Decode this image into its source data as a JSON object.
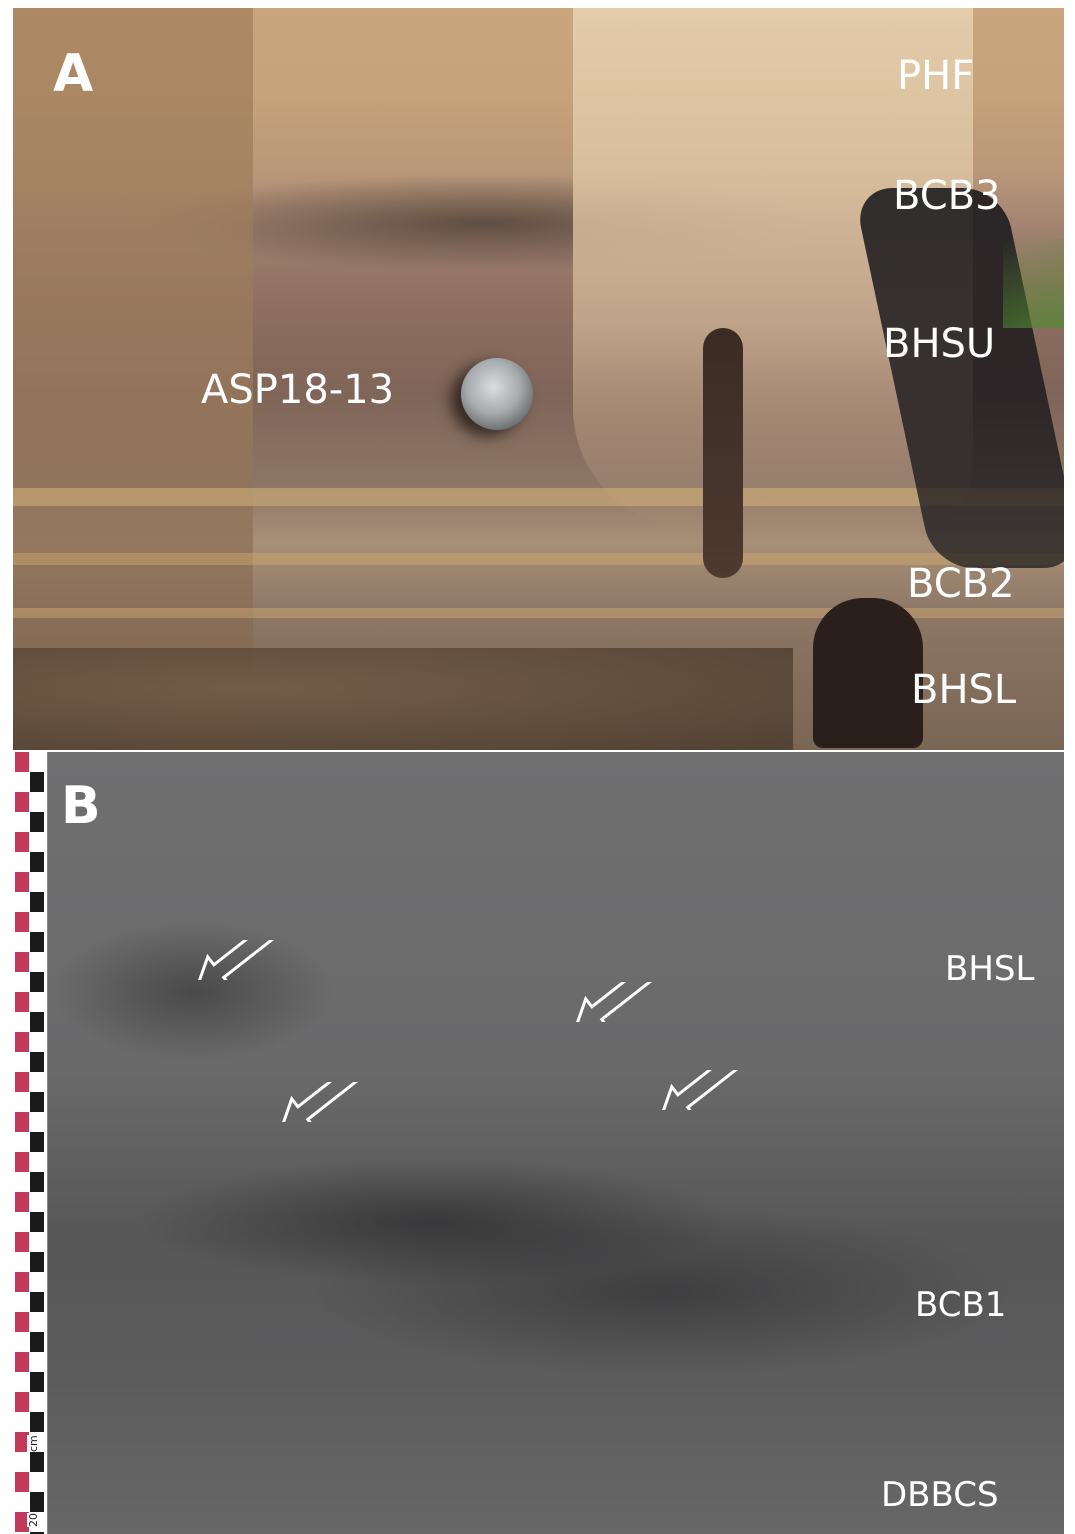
{
  "figure": {
    "panel_a": {
      "letter": "A",
      "sample_label": "ASP18-13",
      "layers": [
        "PHF",
        "BCB3",
        "BHSU",
        "BCB2",
        "BHSL"
      ]
    },
    "panel_b": {
      "letter": "B",
      "layers": [
        "BHSL",
        "BCB1",
        "DBBCS"
      ],
      "scale": {
        "unit": "cm",
        "mark": "20"
      },
      "arrows_count": 4
    }
  }
}
